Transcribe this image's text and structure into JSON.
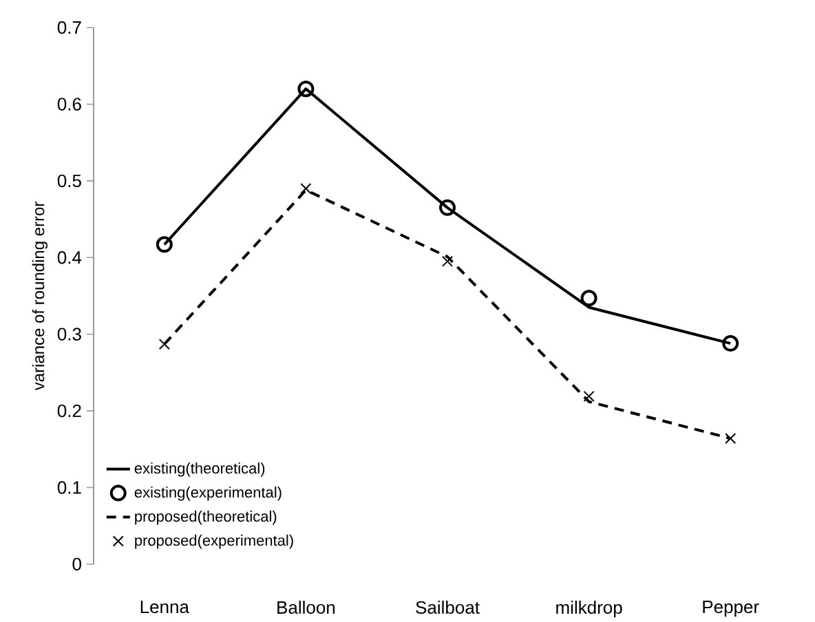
{
  "chart_data": {
    "type": "line",
    "ylabel": "variance of rounding error",
    "categories": [
      "Lenna",
      "Balloon",
      "Sailboat",
      "milkdrop",
      "Pepper"
    ],
    "ylim": [
      0,
      0.7
    ],
    "yticks": [
      0,
      0.1,
      0.2,
      0.3,
      0.4,
      0.5,
      0.6,
      0.7
    ],
    "legend": "bottom left",
    "grid": false,
    "series": [
      {
        "name": "existing(theoretical)",
        "color": "#000000",
        "line_style": "solid",
        "marker": "none",
        "values": [
          0.417,
          0.62,
          0.465,
          0.335,
          0.288
        ]
      },
      {
        "name": "existing(experimental)",
        "type": "scatter",
        "color": "#000000",
        "marker": "circle",
        "values": [
          0.417,
          0.62,
          0.465,
          0.347,
          0.288
        ]
      },
      {
        "name": "proposed(theoretical)",
        "color": "#000000",
        "line_style": "dashed",
        "marker": "none",
        "values": [
          0.287,
          0.488,
          0.401,
          0.212,
          0.164
        ]
      },
      {
        "name": "proposed(experimental)",
        "type": "scatter",
        "color": "#000000",
        "marker": "cross",
        "values": [
          0.287,
          0.49,
          0.395,
          0.219,
          0.164
        ]
      }
    ]
  }
}
